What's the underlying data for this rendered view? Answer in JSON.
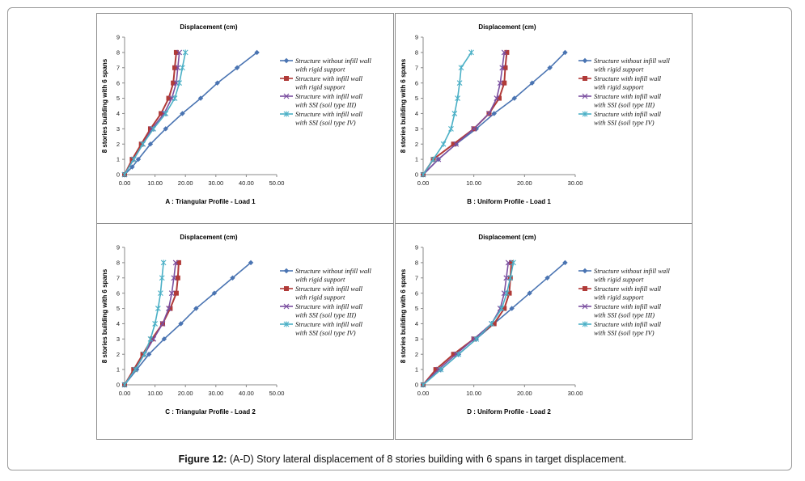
{
  "caption": {
    "label": "Figure 12:",
    "text": " (A-D) Story lateral displacement of 8 stories building with 6 spans in target displacement."
  },
  "colors": {
    "series": [
      "#4a74b2",
      "#b03a38",
      "#7b4fa0",
      "#4bb0c6"
    ]
  },
  "chart_data": [
    {
      "type": "line",
      "title": "Displacement (cm)",
      "ylabel": "8 stories building with 6 spans",
      "xlabel": "A : Triangular Profile - Load 1",
      "xlim": [
        0,
        50
      ],
      "ylim": [
        0,
        9
      ],
      "xticks": [
        "0.00",
        "10.00",
        "20.00",
        "30.00",
        "40.00",
        "50.00"
      ],
      "yticks": [
        "0",
        "1",
        "2",
        "3",
        "4",
        "5",
        "6",
        "7",
        "8",
        "9"
      ],
      "legend_position": "right",
      "series": [
        {
          "name": "Structure without infill wall with rigid support",
          "legend_lines": [
            "Structure without infill wall",
            "with rigid support"
          ],
          "marker": "diamond",
          "x": [
            0,
            2.5,
            4.5,
            8.5,
            13.5,
            19,
            25,
            30.5,
            37,
            43.5
          ],
          "y": [
            0,
            0.5,
            1,
            2,
            3,
            4,
            5,
            6,
            7,
            8
          ]
        },
        {
          "name": "Structure with infill wall with rigid support",
          "legend_lines": [
            "Structure with infill wall",
            "with rigid support"
          ],
          "marker": "square",
          "x": [
            0,
            2.5,
            5.5,
            8.5,
            12,
            14.5,
            16,
            16.5,
            17
          ],
          "y": [
            0,
            1,
            2,
            3,
            4,
            5,
            6,
            7,
            8
          ]
        },
        {
          "name": "Structure with infill wall with SSI (soil type III)",
          "legend_lines": [
            "Structure with infill wall",
            "with SSI (soil type III)"
          ],
          "marker": "cross",
          "x": [
            0,
            3,
            6,
            9,
            13,
            15.5,
            17,
            17.5,
            18
          ],
          "y": [
            0,
            1,
            2,
            3,
            4,
            5,
            6,
            7,
            8
          ]
        },
        {
          "name": "Structure with infill wall with SSI (soil type IV)",
          "legend_lines": [
            "Structure with infill wall",
            "with SSI (soil type IV)"
          ],
          "marker": "star",
          "x": [
            0,
            3,
            6,
            9.5,
            13.5,
            16.5,
            18,
            19,
            20
          ],
          "y": [
            0,
            1,
            2,
            3,
            4,
            5,
            6,
            7,
            8
          ]
        }
      ]
    },
    {
      "type": "line",
      "title": "Displacement (cm)",
      "ylabel": "8 stories building with 6 spans",
      "xlabel": "B : Uniform Profile - Load 1",
      "xlim": [
        0,
        30
      ],
      "ylim": [
        0,
        9
      ],
      "xticks": [
        "0.00",
        "10.00",
        "20.00",
        "30.00"
      ],
      "yticks": [
        "0",
        "1",
        "2",
        "3",
        "4",
        "5",
        "6",
        "7",
        "8",
        "9"
      ],
      "legend_position": "right",
      "series": [
        {
          "name": "Structure without infill wall with rigid support",
          "legend_lines": [
            "Structure without infill wall",
            "with rigid support"
          ],
          "marker": "diamond",
          "x": [
            0,
            3,
            6.5,
            10.5,
            14,
            18,
            21.5,
            25,
            28
          ],
          "y": [
            0,
            1,
            2,
            3,
            4,
            5,
            6,
            7,
            8
          ]
        },
        {
          "name": "Structure with infill wall with rigid support",
          "legend_lines": [
            "Structure with infill wall",
            "with rigid support"
          ],
          "marker": "square",
          "x": [
            0,
            2,
            6,
            10,
            13,
            15,
            16,
            16.2,
            16.5
          ],
          "y": [
            0,
            1,
            2,
            3,
            4,
            5,
            6,
            7,
            8
          ]
        },
        {
          "name": "Structure with infill wall with SSI (soil type III)",
          "legend_lines": [
            "Structure with infill wall",
            "with SSI (soil type III)"
          ],
          "marker": "cross",
          "x": [
            0,
            3,
            6.5,
            10,
            13,
            14.5,
            15.2,
            15.6,
            16
          ],
          "y": [
            0,
            1,
            2,
            3,
            4,
            5,
            6,
            7,
            8
          ]
        },
        {
          "name": "Structure with infill wall with SSI (soil type IV)",
          "legend_lines": [
            "Structure with infill wall",
            "with SSI (soil type IV)"
          ],
          "marker": "star",
          "x": [
            0,
            2,
            4,
            5.5,
            6.2,
            6.8,
            7.2,
            7.5,
            9.5
          ],
          "y": [
            0,
            1,
            2,
            3,
            4,
            5,
            6,
            7,
            8
          ]
        }
      ]
    },
    {
      "type": "line",
      "title": "Displacement (cm)",
      "ylabel": "8 stories building with 6 spans",
      "xlabel": "C : Triangular Profile - Load 2",
      "xlim": [
        0,
        50
      ],
      "ylim": [
        0,
        9
      ],
      "xticks": [
        "0.00",
        "10.00",
        "20.00",
        "30.00",
        "40.00",
        "50.00"
      ],
      "yticks": [
        "0",
        "1",
        "2",
        "3",
        "4",
        "5",
        "6",
        "7",
        "8",
        "9"
      ],
      "legend_position": "right",
      "series": [
        {
          "name": "Structure without infill wall with rigid support",
          "legend_lines": [
            "Structure without infill wall",
            "with rigid support"
          ],
          "marker": "diamond",
          "x": [
            0,
            4,
            8,
            13,
            18.5,
            23.5,
            29.5,
            35.5,
            41.5
          ],
          "y": [
            0,
            1,
            2,
            3,
            4,
            5,
            6,
            7,
            8
          ]
        },
        {
          "name": "Structure with infill wall with rigid support",
          "legend_lines": [
            "Structure with infill wall",
            "with rigid support"
          ],
          "marker": "square",
          "x": [
            0,
            3,
            6,
            9,
            12.5,
            15,
            17,
            17.5,
            17.8
          ],
          "y": [
            0,
            1,
            2,
            3,
            4,
            5,
            6,
            7,
            8
          ]
        },
        {
          "name": "Structure with infill wall with SSI (soil type III)",
          "legend_lines": [
            "Structure with infill wall",
            "with SSI (soil type III)"
          ],
          "marker": "cross",
          "x": [
            0,
            3.5,
            6.5,
            9.5,
            12.5,
            14.5,
            15.5,
            16.2,
            16.8
          ],
          "y": [
            0,
            1,
            2,
            3,
            4,
            5,
            6,
            7,
            8
          ]
        },
        {
          "name": "Structure with infill wall with SSI (soil type IV)",
          "legend_lines": [
            "Structure with infill wall",
            "with SSI (soil type IV)"
          ],
          "marker": "star",
          "x": [
            0,
            3.5,
            6.5,
            8.5,
            10,
            11,
            11.8,
            12.3,
            12.8
          ],
          "y": [
            0,
            1,
            2,
            3,
            4,
            5,
            6,
            7,
            8
          ]
        }
      ]
    },
    {
      "type": "line",
      "title": "Displacement (cm)",
      "ylabel": "8 stories building with 6 spans",
      "xlabel": "D : Uniform Profile - Load 2",
      "xlim": [
        0,
        30
      ],
      "ylim": [
        0,
        9
      ],
      "xticks": [
        "0.00",
        "10.00",
        "20.00",
        "30.00"
      ],
      "yticks": [
        "0",
        "1",
        "2",
        "3",
        "4",
        "5",
        "6",
        "7",
        "8",
        "9"
      ],
      "legend_position": "right",
      "series": [
        {
          "name": "Structure without infill wall with rigid support",
          "legend_lines": [
            "Structure without infill wall",
            "with rigid support"
          ],
          "marker": "diamond",
          "x": [
            0,
            3.5,
            7,
            10.5,
            14,
            17.5,
            21,
            24.5,
            28
          ],
          "y": [
            0,
            1,
            2,
            3,
            4,
            5,
            6,
            7,
            8
          ]
        },
        {
          "name": "Structure with infill wall with rigid support",
          "legend_lines": [
            "Structure with infill wall",
            "with rigid support"
          ],
          "marker": "square",
          "x": [
            0,
            2.5,
            6,
            10,
            14,
            16,
            17,
            17.2,
            17.4
          ],
          "y": [
            0,
            1,
            2,
            3,
            4,
            5,
            6,
            7,
            8
          ]
        },
        {
          "name": "Structure with infill wall with SSI (soil type III)",
          "legend_lines": [
            "Structure with infill wall",
            "with SSI (soil type III)"
          ],
          "marker": "cross",
          "x": [
            0,
            3,
            6.5,
            10,
            13.5,
            15.2,
            16,
            16.4,
            16.8
          ],
          "y": [
            0,
            1,
            2,
            3,
            4,
            5,
            6,
            7,
            8
          ]
        },
        {
          "name": "Structure with infill wall with SSI (soil type IV)",
          "legend_lines": [
            "Structure with infill wall",
            "with SSI (soil type IV)"
          ],
          "marker": "star",
          "x": [
            0,
            3.5,
            7,
            10.5,
            13.5,
            15.5,
            16.5,
            17.2,
            17.8
          ],
          "y": [
            0,
            1,
            2,
            3,
            4,
            5,
            6,
            7,
            8
          ]
        }
      ]
    }
  ]
}
